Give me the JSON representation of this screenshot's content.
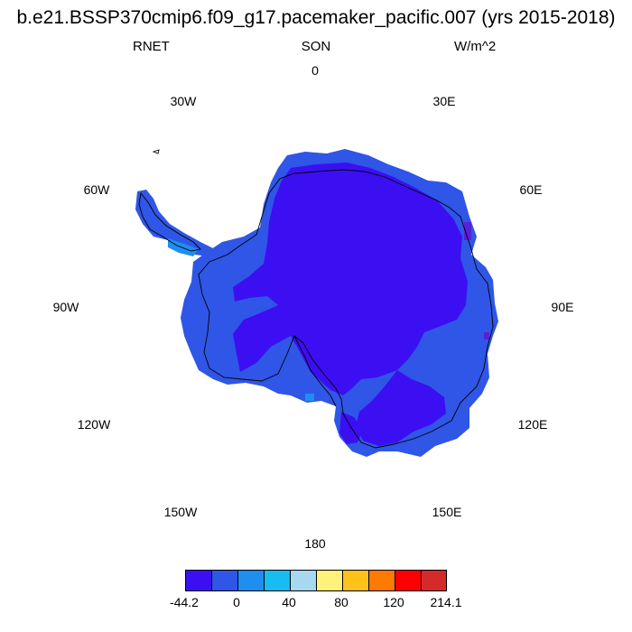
{
  "header": {
    "title": "b.e21.BSSP370cmip6.f09_g17.pacemaker_pacific.007 (yrs 2015-2018)",
    "variable": "RNET",
    "season": "SON",
    "units": "W/m^2"
  },
  "longitude_labels": [
    "0",
    "30E",
    "60E",
    "90E",
    "120E",
    "150E",
    "180",
    "150W",
    "120W",
    "90W",
    "60W",
    "30W"
  ],
  "colorbar": {
    "colors": [
      "#3b0ff2",
      "#2f56e6",
      "#1e8ef0",
      "#17bdf2",
      "#a6d8f0",
      "#fff27a",
      "#ffc21a",
      "#ff7a00",
      "#ff0000",
      "#d42a2a"
    ],
    "labels": [
      "-44.2",
      "0",
      "40",
      "80",
      "120",
      "214.1"
    ]
  },
  "map": {
    "projection": "south polar stereographic",
    "field_colors": {
      "interior": "#3b0ff2",
      "coastal": "#2f56e6",
      "peninsula": "#1e8ef0",
      "deep": "#5a1fd8"
    }
  }
}
